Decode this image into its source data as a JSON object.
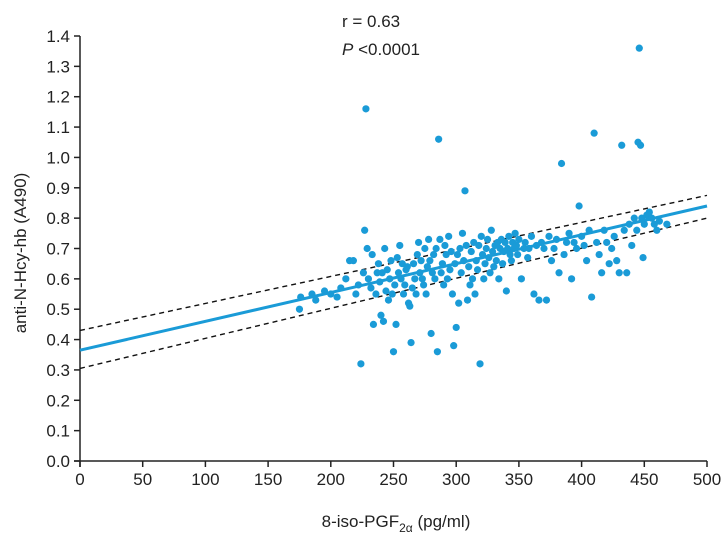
{
  "chart_data": {
    "type": "scatter",
    "xlabel": "8-iso-PGF",
    "xlabel_sub": "2α",
    "xlabel_unit": " (pg/ml)",
    "ylabel": "anti-N-Hcy-hb (A490)",
    "xlim": [
      0,
      500
    ],
    "ylim": [
      0,
      1.4
    ],
    "xticks": [
      "0",
      "50",
      "100",
      "150",
      "200",
      "250",
      "300",
      "350",
      "400",
      "450",
      "500"
    ],
    "yticks": [
      "0.0",
      "0.1",
      "0.2",
      "0.3",
      "0.4",
      "0.5",
      "0.6",
      "0.7",
      "0.8",
      "0.9",
      "1.0",
      "1.1",
      "1.2",
      "1.3",
      "1.4"
    ],
    "annotation_r": "r = 0.63",
    "annotation_p_italic": "P",
    "annotation_p_rest": " <0.0001",
    "regression": {
      "intercept": 0.365,
      "slope": 0.00095
    },
    "ci_upper": [
      [
        0,
        0.43
      ],
      [
        500,
        0.875
      ]
    ],
    "ci_lower": [
      [
        0,
        0.305
      ],
      [
        500,
        0.8
      ]
    ],
    "point_color": "#1a9bd7",
    "line_color": "#1a9bd7",
    "points": [
      [
        175,
        0.5
      ],
      [
        176,
        0.54
      ],
      [
        185,
        0.55
      ],
      [
        188,
        0.53
      ],
      [
        195,
        0.56
      ],
      [
        200,
        0.55
      ],
      [
        205,
        0.54
      ],
      [
        208,
        0.57
      ],
      [
        212,
        0.6
      ],
      [
        215,
        0.66
      ],
      [
        218,
        0.66
      ],
      [
        220,
        0.55
      ],
      [
        222,
        0.58
      ],
      [
        224,
        0.32
      ],
      [
        226,
        0.62
      ],
      [
        227,
        0.76
      ],
      [
        228,
        1.16
      ],
      [
        229,
        0.7
      ],
      [
        230,
        0.6
      ],
      [
        232,
        0.57
      ],
      [
        233,
        0.68
      ],
      [
        234,
        0.45
      ],
      [
        236,
        0.55
      ],
      [
        237,
        0.62
      ],
      [
        238,
        0.65
      ],
      [
        239,
        0.59
      ],
      [
        240,
        0.48
      ],
      [
        241,
        0.62
      ],
      [
        242,
        0.46
      ],
      [
        243,
        0.7
      ],
      [
        244,
        0.56
      ],
      [
        245,
        0.63
      ],
      [
        246,
        0.53
      ],
      [
        247,
        0.6
      ],
      [
        248,
        0.66
      ],
      [
        249,
        0.55
      ],
      [
        250,
        0.36
      ],
      [
        251,
        0.58
      ],
      [
        252,
        0.45
      ],
      [
        253,
        0.67
      ],
      [
        254,
        0.62
      ],
      [
        255,
        0.71
      ],
      [
        256,
        0.6
      ],
      [
        257,
        0.65
      ],
      [
        258,
        0.55
      ],
      [
        259,
        0.58
      ],
      [
        260,
        0.63
      ],
      [
        261,
        0.64
      ],
      [
        262,
        0.52
      ],
      [
        263,
        0.51
      ],
      [
        264,
        0.39
      ],
      [
        265,
        0.57
      ],
      [
        266,
        0.65
      ],
      [
        267,
        0.6
      ],
      [
        268,
        0.55
      ],
      [
        269,
        0.68
      ],
      [
        270,
        0.72
      ],
      [
        271,
        0.62
      ],
      [
        272,
        0.66
      ],
      [
        273,
        0.6
      ],
      [
        274,
        0.58
      ],
      [
        275,
        0.7
      ],
      [
        276,
        0.55
      ],
      [
        277,
        0.64
      ],
      [
        278,
        0.73
      ],
      [
        279,
        0.66
      ],
      [
        280,
        0.42
      ],
      [
        281,
        0.62
      ],
      [
        282,
        0.68
      ],
      [
        283,
        0.6
      ],
      [
        284,
        0.7
      ],
      [
        285,
        0.36
      ],
      [
        286,
        1.06
      ],
      [
        287,
        0.73
      ],
      [
        288,
        0.62
      ],
      [
        289,
        0.65
      ],
      [
        290,
        0.58
      ],
      [
        291,
        0.71
      ],
      [
        292,
        0.68
      ],
      [
        293,
        0.6
      ],
      [
        294,
        0.74
      ],
      [
        295,
        0.63
      ],
      [
        296,
        0.69
      ],
      [
        297,
        0.55
      ],
      [
        298,
        0.38
      ],
      [
        299,
        0.65
      ],
      [
        300,
        0.44
      ],
      [
        301,
        0.68
      ],
      [
        302,
        0.52
      ],
      [
        303,
        0.7
      ],
      [
        304,
        0.62
      ],
      [
        305,
        0.75
      ],
      [
        306,
        0.66
      ],
      [
        307,
        0.89
      ],
      [
        308,
        0.71
      ],
      [
        309,
        0.53
      ],
      [
        310,
        0.64
      ],
      [
        311,
        0.58
      ],
      [
        312,
        0.69
      ],
      [
        313,
        0.6
      ],
      [
        314,
        0.72
      ],
      [
        315,
        0.55
      ],
      [
        316,
        0.66
      ],
      [
        317,
        0.63
      ],
      [
        318,
        0.71
      ],
      [
        319,
        0.32
      ],
      [
        320,
        0.74
      ],
      [
        321,
        0.68
      ],
      [
        322,
        0.6
      ],
      [
        323,
        0.65
      ],
      [
        324,
        0.7
      ],
      [
        325,
        0.73
      ],
      [
        326,
        0.67
      ],
      [
        327,
        0.62
      ],
      [
        328,
        0.76
      ],
      [
        329,
        0.69
      ],
      [
        330,
        0.64
      ],
      [
        331,
        0.71
      ],
      [
        332,
        0.66
      ],
      [
        333,
        0.72
      ],
      [
        334,
        0.6
      ],
      [
        335,
        0.7
      ],
      [
        336,
        0.73
      ],
      [
        337,
        0.65
      ],
      [
        338,
        0.69
      ],
      [
        339,
        0.72
      ],
      [
        340,
        0.56
      ],
      [
        341,
        0.7
      ],
      [
        342,
        0.74
      ],
      [
        343,
        0.68
      ],
      [
        344,
        0.66
      ],
      [
        345,
        0.72
      ],
      [
        346,
        0.7
      ],
      [
        347,
        0.75
      ],
      [
        348,
        0.71
      ],
      [
        349,
        0.68
      ],
      [
        350,
        0.73
      ],
      [
        352,
        0.6
      ],
      [
        354,
        0.7
      ],
      [
        355,
        0.72
      ],
      [
        357,
        0.67
      ],
      [
        358,
        0.7
      ],
      [
        360,
        0.74
      ],
      [
        362,
        0.55
      ],
      [
        364,
        0.71
      ],
      [
        366,
        0.53
      ],
      [
        368,
        0.72
      ],
      [
        370,
        0.7
      ],
      [
        372,
        0.53
      ],
      [
        374,
        0.74
      ],
      [
        376,
        0.66
      ],
      [
        378,
        0.7
      ],
      [
        380,
        0.73
      ],
      [
        382,
        0.62
      ],
      [
        384,
        0.98
      ],
      [
        386,
        0.68
      ],
      [
        388,
        0.72
      ],
      [
        390,
        0.75
      ],
      [
        392,
        0.6
      ],
      [
        394,
        0.72
      ],
      [
        396,
        0.7
      ],
      [
        398,
        0.84
      ],
      [
        400,
        0.74
      ],
      [
        402,
        0.71
      ],
      [
        404,
        0.66
      ],
      [
        406,
        0.76
      ],
      [
        408,
        0.54
      ],
      [
        410,
        1.08
      ],
      [
        412,
        0.72
      ],
      [
        414,
        0.68
      ],
      [
        416,
        0.62
      ],
      [
        418,
        0.76
      ],
      [
        420,
        0.72
      ],
      [
        422,
        0.65
      ],
      [
        424,
        0.7
      ],
      [
        426,
        0.74
      ],
      [
        428,
        0.66
      ],
      [
        430,
        0.62
      ],
      [
        432,
        1.04
      ],
      [
        434,
        0.76
      ],
      [
        436,
        0.62
      ],
      [
        438,
        0.78
      ],
      [
        440,
        0.71
      ],
      [
        442,
        0.8
      ],
      [
        444,
        0.76
      ],
      [
        445,
        1.05
      ],
      [
        446,
        1.36
      ],
      [
        447,
        1.04
      ],
      [
        448,
        0.8
      ],
      [
        449,
        0.67
      ],
      [
        450,
        0.78
      ],
      [
        452,
        0.81
      ],
      [
        454,
        0.82
      ],
      [
        456,
        0.8
      ],
      [
        458,
        0.78
      ],
      [
        460,
        0.76
      ],
      [
        462,
        0.79
      ],
      [
        468,
        0.78
      ]
    ]
  }
}
